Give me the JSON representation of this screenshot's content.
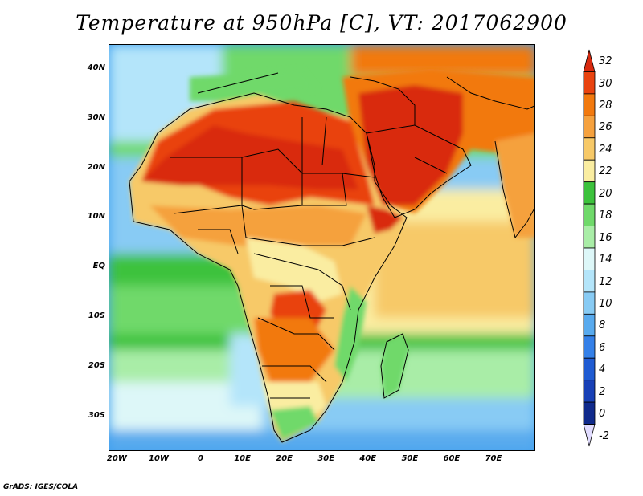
{
  "title": "Temperature at 950hPa [C], VT: 2017062900",
  "credit": "GrADS: IGES/COLA",
  "map": {
    "lon_range": [
      -22,
      80
    ],
    "lat_range": [
      -37,
      45
    ],
    "lat_ticks": [
      {
        "value": 40,
        "label": "40N"
      },
      {
        "value": 30,
        "label": "30N"
      },
      {
        "value": 20,
        "label": "20N"
      },
      {
        "value": 10,
        "label": "10N"
      },
      {
        "value": 0,
        "label": "EQ"
      },
      {
        "value": -10,
        "label": "10S"
      },
      {
        "value": -20,
        "label": "20S"
      },
      {
        "value": -30,
        "label": "30S"
      }
    ],
    "lon_ticks": [
      {
        "value": -20,
        "label": "20W"
      },
      {
        "value": -10,
        "label": "10W"
      },
      {
        "value": 0,
        "label": "0"
      },
      {
        "value": 10,
        "label": "10E"
      },
      {
        "value": 20,
        "label": "20E"
      },
      {
        "value": 30,
        "label": "30E"
      },
      {
        "value": 40,
        "label": "40E"
      },
      {
        "value": 50,
        "label": "50E"
      },
      {
        "value": 60,
        "label": "60E"
      },
      {
        "value": 70,
        "label": "70E"
      }
    ]
  },
  "colorbar": {
    "levels": [
      "32",
      "30",
      "28",
      "26",
      "24",
      "22",
      "20",
      "18",
      "16",
      "14",
      "12",
      "10",
      "8",
      "6",
      "4",
      "2",
      "0",
      "-2"
    ],
    "colors": [
      "#d92a0f",
      "#e9430f",
      "#f2790e",
      "#f5a13e",
      "#f7c968",
      "#faeda1",
      "#3cc23c",
      "#6fd96a",
      "#a9eda7",
      "#ddf7f8",
      "#b4e5fa",
      "#88cbf4",
      "#58aaee",
      "#3480e8",
      "#1f5bd2",
      "#1840b6",
      "#102a8c",
      "#e1dcff"
    ]
  }
}
